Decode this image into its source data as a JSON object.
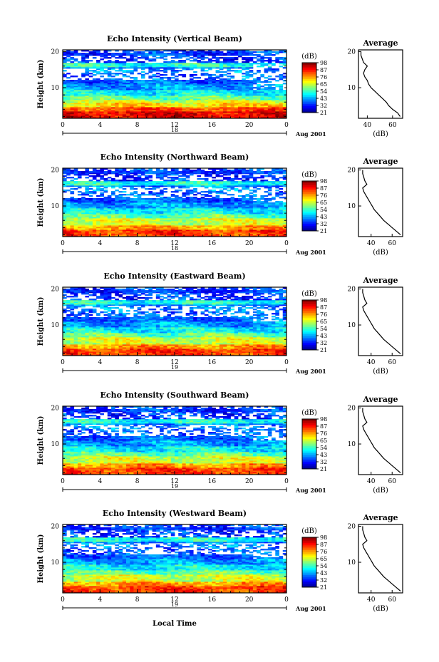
{
  "figure": {
    "xlabel_bottom": "Local Time",
    "date_label": "Aug 2001"
  },
  "chart_data": [
    {
      "type": "heatmap",
      "title": "Echo Intensity (Vertical Beam)",
      "ylabel": "Height (km)",
      "yticks": [
        "10",
        "20"
      ],
      "xticks": [
        "0",
        "4",
        "8",
        "12",
        "16",
        "20",
        "0"
      ],
      "date_axis": {
        "day": "18",
        "month_year": "Aug 2001"
      },
      "xlim": [
        0,
        24
      ],
      "ylim": [
        1.5,
        20.5
      ],
      "colorbar": {
        "title": "(dB)",
        "levels": [
          "21",
          "32",
          "43",
          "54",
          "65",
          "76",
          "87",
          "98"
        ]
      },
      "profile": {
        "title": "Average",
        "xlabel": "(dB)",
        "xticks": [
          "40",
          "60"
        ],
        "yticks": [
          "10",
          "20"
        ],
        "xlim": [
          33,
          68
        ],
        "heights": [
          2,
          3,
          4,
          5,
          6,
          7,
          8,
          9,
          10,
          11,
          12,
          13,
          14,
          15,
          16,
          17,
          18,
          19,
          20
        ],
        "values": [
          66,
          64,
          60,
          57,
          55,
          52,
          49,
          46,
          43,
          41,
          40,
          38,
          37,
          38,
          40,
          37,
          36,
          35,
          35
        ]
      }
    },
    {
      "type": "heatmap",
      "title": "Echo Intensity (Northward Beam)",
      "ylabel": "Height (km)",
      "yticks": [
        "10",
        "20"
      ],
      "xticks": [
        "0",
        "4",
        "8",
        "12",
        "16",
        "20",
        "0"
      ],
      "date_axis": {
        "day": "18",
        "month_year": "Aug 2001"
      },
      "xlim": [
        0,
        24
      ],
      "ylim": [
        1.5,
        20.5
      ],
      "colorbar": {
        "title": "(dB)",
        "levels": [
          "21",
          "32",
          "43",
          "54",
          "65",
          "76",
          "87",
          "98"
        ]
      },
      "profile": {
        "title": "Average",
        "xlabel": "(dB)",
        "xticks": [
          "40",
          "60"
        ],
        "yticks": [
          "10",
          "20"
        ],
        "xlim": [
          28,
          70
        ],
        "heights": [
          2,
          3,
          4,
          5,
          6,
          7,
          8,
          9,
          10,
          11,
          12,
          13,
          14,
          15,
          16,
          17,
          18,
          19,
          20
        ],
        "values": [
          68,
          64,
          60,
          56,
          52,
          49,
          46,
          43,
          41,
          39,
          37,
          35,
          33,
          32,
          36,
          34,
          33,
          32,
          32
        ]
      }
    },
    {
      "type": "heatmap",
      "title": "Echo Intensity (Eastward Beam)",
      "ylabel": "Height (km)",
      "yticks": [
        "10",
        "20"
      ],
      "xticks": [
        "0",
        "4",
        "8",
        "12",
        "16",
        "20",
        "0"
      ],
      "date_axis": {
        "day": "19",
        "month_year": "Aug 2001"
      },
      "xlim": [
        0,
        24
      ],
      "ylim": [
        1.5,
        20.5
      ],
      "colorbar": {
        "title": "(dB)",
        "levels": [
          "21",
          "32",
          "43",
          "54",
          "65",
          "76",
          "87",
          "98"
        ]
      },
      "profile": {
        "title": "Average",
        "xlabel": "(dB)",
        "xticks": [
          "40",
          "60"
        ],
        "yticks": [
          "10",
          "20"
        ],
        "xlim": [
          28,
          70
        ],
        "heights": [
          2,
          3,
          4,
          5,
          6,
          7,
          8,
          9,
          10,
          11,
          12,
          13,
          14,
          15,
          16,
          17,
          18,
          19,
          20
        ],
        "values": [
          68,
          64,
          60,
          56,
          52,
          49,
          46,
          43,
          41,
          39,
          37,
          35,
          33,
          32,
          36,
          34,
          33,
          32,
          32
        ]
      }
    },
    {
      "type": "heatmap",
      "title": "Echo Intensity (Southward Beam)",
      "ylabel": "Height (km)",
      "yticks": [
        "10",
        "20"
      ],
      "xticks": [
        "0",
        "4",
        "8",
        "12",
        "16",
        "20",
        "0"
      ],
      "date_axis": {
        "day": "19",
        "month_year": "Aug 2001"
      },
      "xlim": [
        0,
        24
      ],
      "ylim": [
        1.5,
        20.5
      ],
      "colorbar": {
        "title": "(dB)",
        "levels": [
          "21",
          "32",
          "43",
          "54",
          "65",
          "76",
          "87",
          "98"
        ]
      },
      "profile": {
        "title": "Average",
        "xlabel": "(dB)",
        "xticks": [
          "40",
          "60"
        ],
        "yticks": [
          "10",
          "20"
        ],
        "xlim": [
          28,
          70
        ],
        "heights": [
          2,
          3,
          4,
          5,
          6,
          7,
          8,
          9,
          10,
          11,
          12,
          13,
          14,
          15,
          16,
          17,
          18,
          19,
          20
        ],
        "values": [
          68,
          64,
          60,
          56,
          52,
          49,
          46,
          43,
          41,
          39,
          37,
          35,
          33,
          32,
          36,
          34,
          33,
          32,
          32
        ]
      }
    },
    {
      "type": "heatmap",
      "title": "Echo Intensity (Westward Beam)",
      "ylabel": "Height (km)",
      "yticks": [
        "10",
        "20"
      ],
      "xticks": [
        "0",
        "4",
        "8",
        "12",
        "16",
        "20",
        "0"
      ],
      "date_axis": {
        "day": "19",
        "month_year": "Aug 2001"
      },
      "xlim": [
        0,
        24
      ],
      "ylim": [
        1.5,
        20.5
      ],
      "colorbar": {
        "title": "(dB)",
        "levels": [
          "21",
          "32",
          "43",
          "54",
          "65",
          "76",
          "87",
          "98"
        ]
      },
      "profile": {
        "title": "Average",
        "xlabel": "(dB)",
        "xticks": [
          "40",
          "60"
        ],
        "yticks": [
          "10",
          "20"
        ],
        "xlim": [
          28,
          70
        ],
        "heights": [
          2,
          3,
          4,
          5,
          6,
          7,
          8,
          9,
          10,
          11,
          12,
          13,
          14,
          15,
          16,
          17,
          18,
          19,
          20
        ],
        "values": [
          68,
          64,
          60,
          56,
          52,
          49,
          46,
          43,
          41,
          39,
          37,
          35,
          33,
          32,
          36,
          34,
          33,
          32,
          32
        ]
      }
    }
  ]
}
